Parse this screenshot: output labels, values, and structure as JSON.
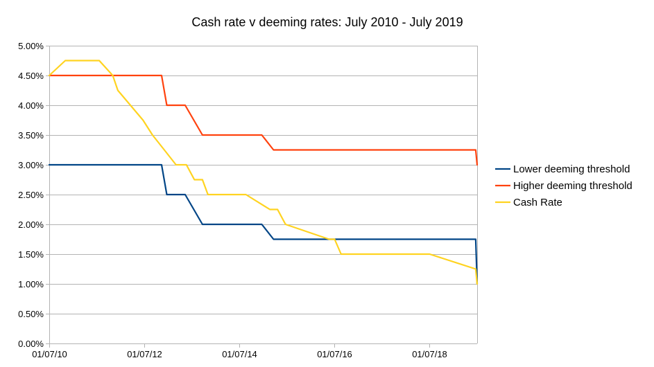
{
  "chart_data": {
    "type": "line",
    "title": "Cash rate v deeming rates: July 2010 - July 2019",
    "xlabel": "",
    "ylabel": "",
    "xlim": [
      "2010-07-01",
      "2019-07-01"
    ],
    "ylim": [
      0,
      5
    ],
    "x_ticks": [
      "01/07/10",
      "01/07/12",
      "01/07/14",
      "01/07/16",
      "01/07/18"
    ],
    "y_ticks": [
      "0.00%",
      "0.50%",
      "1.00%",
      "1.50%",
      "2.00%",
      "2.50%",
      "3.00%",
      "3.50%",
      "4.00%",
      "4.50%",
      "5.00%"
    ],
    "grid": true,
    "legend_position": "right",
    "series": [
      {
        "name": "Lower deeming threshold",
        "color": "#004586",
        "points": [
          [
            "2010-07-01",
            3.0
          ],
          [
            "2012-11-10",
            3.0
          ],
          [
            "2012-12-20",
            2.5
          ],
          [
            "2013-05-10",
            2.5
          ],
          [
            "2013-09-20",
            2.0
          ],
          [
            "2014-12-20",
            2.0
          ],
          [
            "2015-03-20",
            1.75
          ],
          [
            "2019-06-20",
            1.75
          ],
          [
            "2019-07-01",
            1.0
          ]
        ]
      },
      {
        "name": "Higher deeming threshold",
        "color": "#ff420e",
        "points": [
          [
            "2010-07-01",
            4.5
          ],
          [
            "2012-11-10",
            4.5
          ],
          [
            "2012-12-20",
            4.0
          ],
          [
            "2013-05-10",
            4.0
          ],
          [
            "2013-09-20",
            3.5
          ],
          [
            "2014-12-20",
            3.5
          ],
          [
            "2015-03-20",
            3.25
          ],
          [
            "2019-06-20",
            3.25
          ],
          [
            "2019-07-01",
            3.0
          ]
        ]
      },
      {
        "name": "Cash Rate",
        "color": "#ffd320",
        "points": [
          [
            "2010-07-01",
            4.5
          ],
          [
            "2010-11-01",
            4.75
          ],
          [
            "2011-07-20",
            4.75
          ],
          [
            "2011-11-01",
            4.5
          ],
          [
            "2011-12-10",
            4.25
          ],
          [
            "2012-06-20",
            3.75
          ],
          [
            "2012-09-01",
            3.5
          ],
          [
            "2012-12-01",
            3.25
          ],
          [
            "2013-03-01",
            3.0
          ],
          [
            "2013-05-20",
            3.0
          ],
          [
            "2013-07-20",
            2.75
          ],
          [
            "2013-09-20",
            2.75
          ],
          [
            "2013-11-01",
            2.5
          ],
          [
            "2014-08-20",
            2.5
          ],
          [
            "2015-02-20",
            2.25
          ],
          [
            "2015-04-20",
            2.25
          ],
          [
            "2015-06-20",
            2.0
          ],
          [
            "2016-05-20",
            1.75
          ],
          [
            "2016-07-01",
            1.75
          ],
          [
            "2016-08-20",
            1.5
          ],
          [
            "2018-07-01",
            1.5
          ],
          [
            "2019-06-20",
            1.25
          ],
          [
            "2019-07-01",
            1.0
          ]
        ]
      }
    ]
  }
}
